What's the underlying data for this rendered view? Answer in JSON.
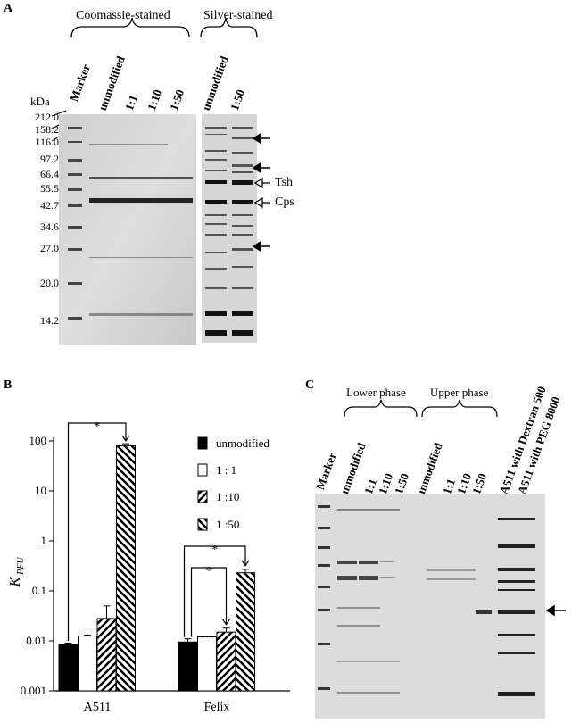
{
  "panelA": {
    "label": "A",
    "group_coomassie": "Coomassie-stained",
    "group_silver": "Silver-stained",
    "unit": "kDa",
    "lanes_coomassie": [
      "Marker",
      "unmodified",
      "1:1",
      "1:10",
      "1:50"
    ],
    "lanes_silver": [
      "unmodified",
      "1:50"
    ],
    "markers": [
      "212.0",
      "158.2",
      "116.0",
      "97.2",
      "66.4",
      "55.5",
      "42.7",
      "34.6",
      "27.0",
      "20.0",
      "14.2"
    ],
    "band_tsh": "Tsh",
    "band_cps": "Cps"
  },
  "panelB": {
    "label": "B",
    "ylabel": "K",
    "ylabel_sub": "PFU",
    "yticks": [
      "100",
      "10",
      "1",
      "0.1",
      "0.01",
      "0.001"
    ],
    "legend": [
      "unmodified",
      "1 : 1",
      "1 :10",
      "1 :50"
    ],
    "significance": "*",
    "chart_data": {
      "type": "bar",
      "scale": "log",
      "ylim": [
        0.001,
        100
      ],
      "categories": [
        "A511",
        "Felix"
      ],
      "series": [
        {
          "name": "unmodified",
          "values": [
            0.0085,
            0.0095
          ],
          "errors": [
            0.0005,
            0.0015
          ]
        },
        {
          "name": "1 : 1",
          "values": [
            0.0125,
            0.012
          ],
          "errors": [
            0.0005,
            0.0005
          ]
        },
        {
          "name": "1 :10",
          "values": [
            0.028,
            0.015
          ],
          "errors": [
            0.022,
            0.003
          ]
        },
        {
          "name": "1 :50",
          "values": [
            80,
            0.23
          ],
          "errors": [
            8,
            0.04
          ]
        }
      ]
    }
  },
  "panelC": {
    "label": "C",
    "group_lower": "Lower phase",
    "group_upper": "Upper phase",
    "lanes": [
      "Marker",
      "unmodified",
      "1:1",
      "1:10",
      "1:50",
      "unmodified",
      "1:1",
      "1:10",
      "1:50",
      "A511 with Dextran 500",
      "A511 with PEG 8000"
    ]
  }
}
